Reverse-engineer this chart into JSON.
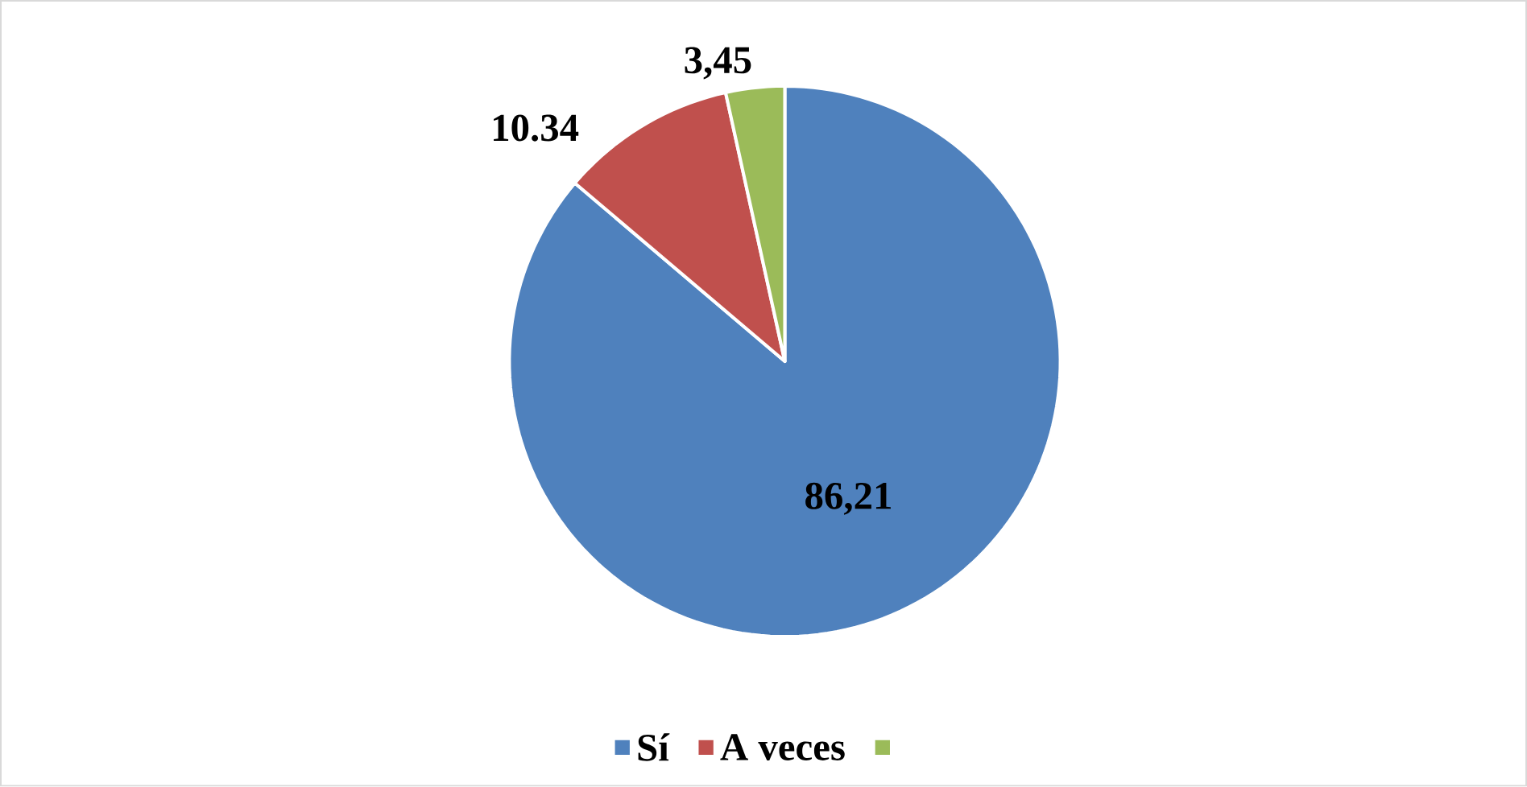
{
  "chart_data": {
    "type": "pie",
    "categories": [
      "Sí",
      "A veces",
      null
    ],
    "values": [
      86.21,
      10.34,
      3.45
    ],
    "value_labels": [
      "86,21",
      "10.34",
      "3,45"
    ],
    "colors": [
      "#4f81bd",
      "#c0504d",
      "#9bbb59"
    ],
    "legend": "bottom"
  }
}
